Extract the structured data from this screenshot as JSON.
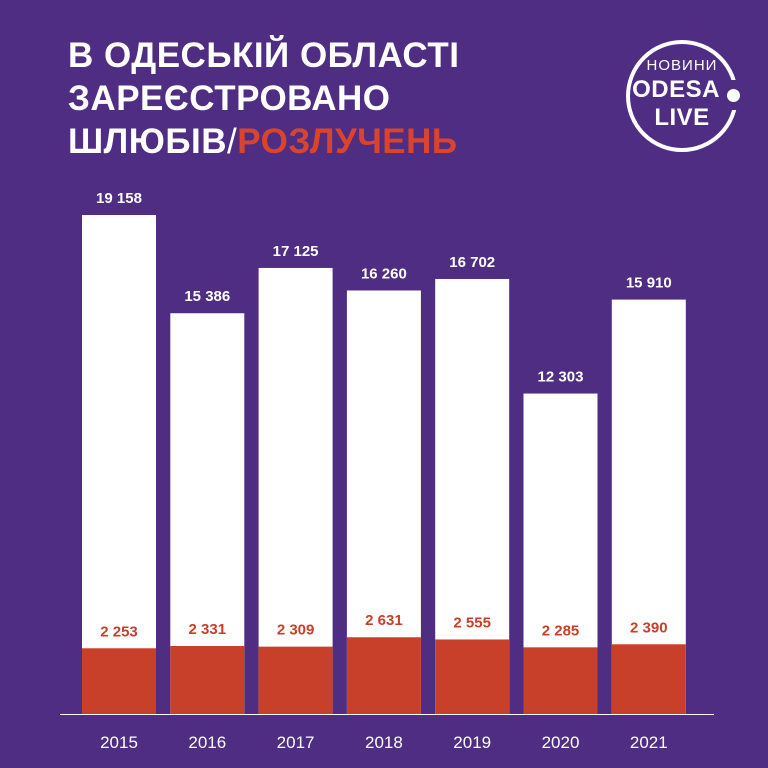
{
  "title": {
    "line1": "В ОДЕСЬКІЙ ОБЛАСТІ",
    "line2": "ЗАРЕЄСТРОВАНО",
    "line3_main": "ШЛЮБІВ",
    "line3_sep": "/",
    "line3_accent": "РОЗЛУЧЕНЬ"
  },
  "logo": {
    "top": "НОВИНИ",
    "middle": "ODESA",
    "bottom": "LIVE"
  },
  "colors": {
    "background": "#4f2d82",
    "marriages": "#ffffff",
    "divorces": "#c8402a",
    "accent": "#d9452c",
    "axis": "#ffffff"
  },
  "chart_data": {
    "type": "bar",
    "categories": [
      "2015",
      "2016",
      "2017",
      "2018",
      "2019",
      "2020",
      "2021"
    ],
    "series": [
      {
        "name": "ШЛЮБІВ",
        "values": [
          19158,
          15386,
          17125,
          16260,
          16702,
          12303,
          15910
        ],
        "labels": [
          "19 158",
          "15 386",
          "17 125",
          "16 260",
          "16 702",
          "12 303",
          "15 910"
        ]
      },
      {
        "name": "РОЗЛУЧЕНЬ",
        "values": [
          2253,
          2331,
          2309,
          2631,
          2555,
          2285,
          2390
        ],
        "labels": [
          "2 253",
          "2 331",
          "2 309",
          "2 631",
          "2 555",
          "2 285",
          "2 390"
        ]
      }
    ],
    "ylim": [
      0,
      19158
    ],
    "grid": false,
    "legend": "none"
  }
}
